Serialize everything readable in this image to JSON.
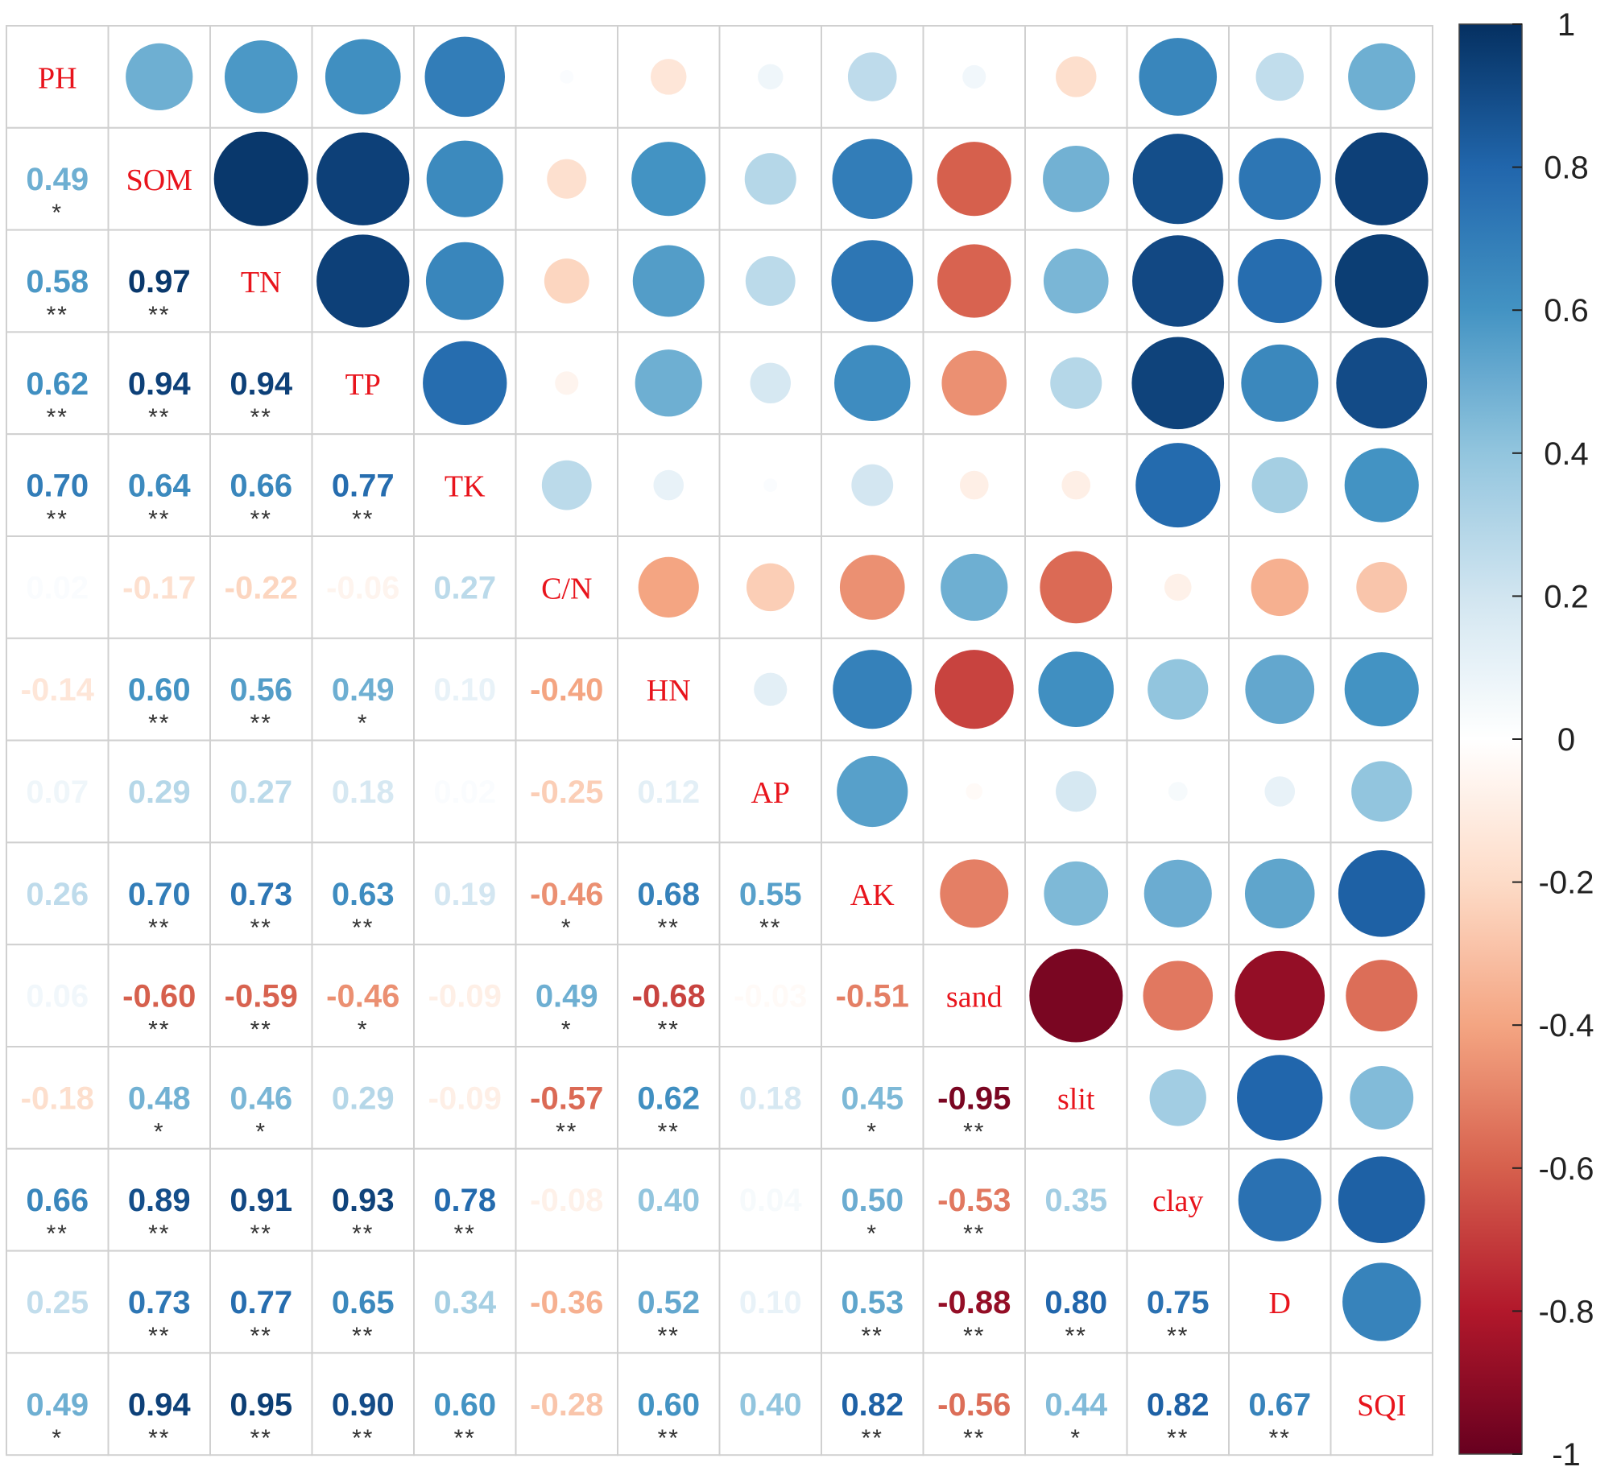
{
  "chart_data": {
    "type": "heatmap",
    "title": "",
    "variables": [
      "PH",
      "SOM",
      "TN",
      "TP",
      "TK",
      "C/N",
      "HN",
      "AP",
      "AK",
      "sand",
      "slit",
      "clay",
      "D",
      "SQI"
    ],
    "lower_values": [
      [],
      [
        0.49
      ],
      [
        0.58,
        0.97
      ],
      [
        0.62,
        0.94,
        0.94
      ],
      [
        0.7,
        0.64,
        0.66,
        0.77
      ],
      [
        0.02,
        -0.17,
        -0.22,
        -0.06,
        0.27
      ],
      [
        -0.14,
        0.6,
        0.56,
        0.49,
        0.1,
        -0.4
      ],
      [
        0.07,
        0.29,
        0.27,
        0.18,
        0.02,
        -0.25,
        0.12
      ],
      [
        0.26,
        0.7,
        0.73,
        0.63,
        0.19,
        -0.46,
        0.68,
        0.55
      ],
      [
        0.06,
        -0.6,
        -0.59,
        -0.46,
        -0.09,
        0.49,
        -0.68,
        -0.03,
        -0.51
      ],
      [
        -0.18,
        0.48,
        0.46,
        0.29,
        -0.09,
        -0.57,
        0.62,
        0.18,
        0.45,
        -0.95
      ],
      [
        0.66,
        0.89,
        0.91,
        0.93,
        0.78,
        -0.08,
        0.4,
        0.04,
        0.5,
        -0.53,
        0.35
      ],
      [
        0.25,
        0.73,
        0.77,
        0.65,
        0.34,
        -0.36,
        0.52,
        0.1,
        0.53,
        -0.88,
        0.8,
        0.75
      ],
      [
        0.49,
        0.94,
        0.95,
        0.9,
        0.6,
        -0.28,
        0.6,
        0.4,
        0.82,
        -0.56,
        0.44,
        0.82,
        0.67
      ]
    ],
    "value_labels": [
      [],
      [
        "0.49"
      ],
      [
        "0.58",
        "0.97"
      ],
      [
        "0.62",
        "0.94",
        "0.94"
      ],
      [
        "0.70",
        "0.64",
        "0.66",
        "0.77"
      ],
      [
        "0.02",
        "-0.17",
        "-0.22",
        "-0.06",
        "0.27"
      ],
      [
        "-0.14",
        "0.60",
        "0.56",
        "0.49",
        "0.10",
        "-0.40"
      ],
      [
        "0.07",
        "0.29",
        "0.27",
        "0.18",
        "0.02",
        "-0.25",
        "0.12"
      ],
      [
        "0.26",
        "0.70",
        "0.73",
        "0.63",
        "0.19",
        "-0.46",
        "0.68",
        "0.55"
      ],
      [
        "0.06",
        "-0.60",
        "-0.59",
        "-0.46",
        "-0.09",
        "0.49",
        "-0.68",
        "-0.03",
        "-0.51"
      ],
      [
        "-0.18",
        "0.48",
        "0.46",
        "0.29",
        "-0.09",
        "-0.57",
        "0.62",
        "0.18",
        "0.45",
        "-0.95"
      ],
      [
        "0.66",
        "0.89",
        "0.91",
        "0.93",
        "0.78",
        "-0.08",
        "0.40",
        "0.04",
        "0.50",
        "-0.53",
        "0.35"
      ],
      [
        "0.25",
        "0.73",
        "0.77",
        "0.65",
        "0.34",
        "-0.36",
        "0.52",
        "0.10",
        "0.53",
        "-0.88",
        "0.80",
        "0.75"
      ],
      [
        "0.49",
        "0.94",
        "0.95",
        "0.90",
        "0.60",
        "-0.28",
        "0.60",
        "0.40",
        "0.82",
        "-0.56",
        "0.44",
        "0.82",
        "0.67"
      ]
    ],
    "significance": [
      [],
      [
        "*"
      ],
      [
        "**",
        "**"
      ],
      [
        "**",
        "**",
        "**"
      ],
      [
        "**",
        "**",
        "**",
        "**"
      ],
      [
        "",
        "",
        "",
        "",
        ""
      ],
      [
        "",
        "**",
        "**",
        "*",
        "",
        ""
      ],
      [
        "",
        "",
        "",
        "",
        "",
        "",
        ""
      ],
      [
        "",
        "**",
        "**",
        "**",
        "",
        "*",
        "**",
        "**"
      ],
      [
        "",
        "**",
        "**",
        "*",
        "",
        "*",
        "**",
        "",
        ""
      ],
      [
        "",
        "*",
        "*",
        "",
        "",
        "**",
        "**",
        "",
        "*",
        "**"
      ],
      [
        "**",
        "**",
        "**",
        "**",
        "**",
        "",
        "",
        "",
        "*",
        "**",
        ""
      ],
      [
        "",
        "**",
        "**",
        "**",
        "",
        "",
        "**",
        "",
        "**",
        "**",
        "**",
        "**"
      ],
      [
        "*",
        "**",
        "**",
        "**",
        "**",
        "",
        "**",
        "",
        "**",
        "**",
        "*",
        "**",
        "**"
      ]
    ],
    "upper_style": "circle",
    "legend": {
      "position": "right",
      "range": [
        -1,
        1
      ],
      "tick_values": [
        1,
        0.8,
        0.6,
        0.4,
        0.2,
        0,
        -0.2,
        -0.4,
        -0.6,
        -0.8,
        -1
      ],
      "tick_labels": [
        "1",
        "0.8",
        "0.6",
        "0.4",
        "0.2",
        "0",
        "-0.2",
        "-0.4",
        "-0.6",
        "-0.8",
        "-1"
      ]
    },
    "colors": {
      "negative_end": "#67001F",
      "positive_end": "#053061",
      "diagonal_label": "#E8141C",
      "grid": "#D0D0D0",
      "significance_mark": "#333333"
    }
  }
}
